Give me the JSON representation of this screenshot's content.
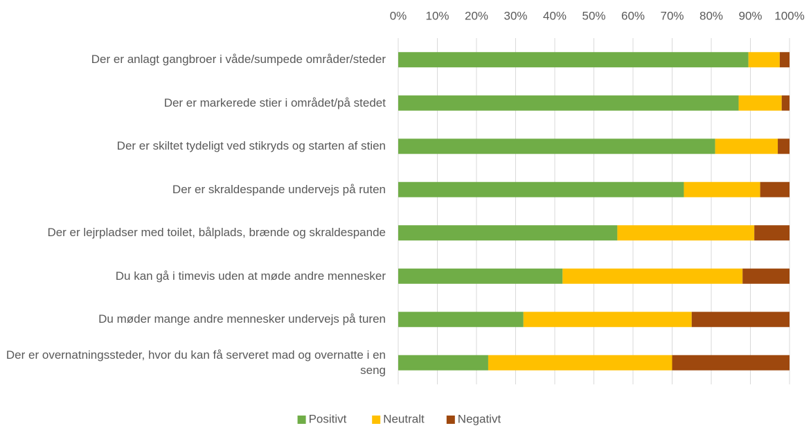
{
  "chart_data": {
    "type": "stacked_bar_horizontal",
    "categories": [
      "Der er anlagt gangbroer i våde/sumpede områder/steder",
      "Der er markerede stier i området/på stedet",
      "Der er skiltet tydeligt ved stikryds og starten af stien",
      "Der er skraldespande undervejs på ruten",
      "Der er lejrpladser med toilet, bålplads, brænde og skraldespande",
      "Du kan gå i timevis uden at møde andre mennesker",
      "Du møder mange andre mennesker undervejs på turen",
      "Der er overnatningssteder, hvor du kan få serveret mad og overnatte i en seng"
    ],
    "series": [
      {
        "name": "Positivt",
        "color": "#70ad47",
        "values": [
          89.5,
          87,
          81,
          73,
          56,
          42,
          32,
          23
        ]
      },
      {
        "name": "Neutralt",
        "color": "#ffc000",
        "values": [
          8,
          11,
          16,
          19.5,
          35,
          46,
          43,
          47
        ]
      },
      {
        "name": "Negativt",
        "color": "#9e480e",
        "values": [
          2.5,
          2,
          3,
          7.5,
          9,
          12,
          25,
          30
        ]
      }
    ],
    "xlim": [
      0,
      100
    ],
    "xticks": [
      {
        "value": 0,
        "label": "0%"
      },
      {
        "value": 10,
        "label": "10%"
      },
      {
        "value": 20,
        "label": "20%"
      },
      {
        "value": 30,
        "label": "30%"
      },
      {
        "value": 40,
        "label": "40%"
      },
      {
        "value": 50,
        "label": "50%"
      },
      {
        "value": 60,
        "label": "60%"
      },
      {
        "value": 70,
        "label": "70%"
      },
      {
        "value": 80,
        "label": "80%"
      },
      {
        "value": 90,
        "label": "90%"
      },
      {
        "value": 100,
        "label": "100%"
      }
    ],
    "grid": true,
    "legend": "bottom"
  }
}
